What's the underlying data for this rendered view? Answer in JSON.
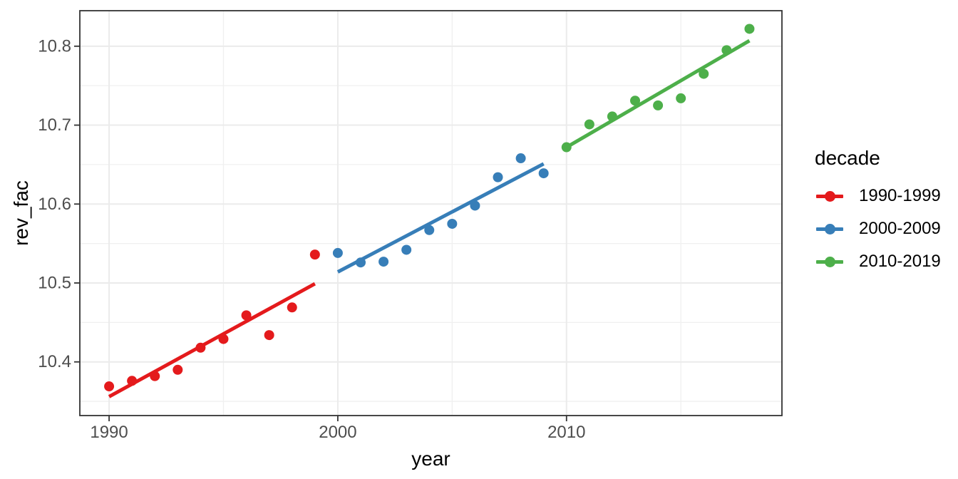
{
  "figure": {
    "background": "#ffffff",
    "panel_border_color": "#333333",
    "grid_major_color": "#ebebeb",
    "grid_minor_color": "#f0f0f0",
    "tick_color": "#333333",
    "tick_label_color": "#4d4d4d",
    "title_color": "#000000"
  },
  "chart_data": {
    "type": "scatter",
    "title": "",
    "xlabel": "year",
    "ylabel": "rev_fac",
    "legend_title": "decade",
    "legend_position": "right",
    "grid": true,
    "xlim": [
      1988.72,
      2019.42
    ],
    "ylim": [
      10.332,
      10.845
    ],
    "x_tick_values": [
      1990,
      2000,
      2010
    ],
    "x_tick_labels": [
      "1990",
      "2000",
      "2010"
    ],
    "x_minor_tick_values": [
      1995,
      2005,
      2015
    ],
    "y_tick_values": [
      10.4,
      10.5,
      10.6,
      10.7,
      10.8
    ],
    "y_tick_labels": [
      "10.4",
      "10.5",
      "10.6",
      "10.7",
      "10.8"
    ],
    "y_minor_tick_values": [
      10.35,
      10.45,
      10.55,
      10.65,
      10.75
    ],
    "series": [
      {
        "name": "1990-1999",
        "color": "#E41A1C",
        "x": [
          1990,
          1991,
          1992,
          1993,
          1994,
          1995,
          1996,
          1997,
          1998,
          1999
        ],
        "y": [
          10.369,
          10.376,
          10.382,
          10.39,
          10.418,
          10.429,
          10.459,
          10.434,
          10.469,
          10.536
        ],
        "trend": {
          "x1": 1990,
          "y1": 10.356,
          "x2": 1999,
          "y2": 10.499
        }
      },
      {
        "name": "2000-2009",
        "color": "#377EB8",
        "x": [
          2000,
          2001,
          2002,
          2003,
          2004,
          2005,
          2006,
          2007,
          2008,
          2009
        ],
        "y": [
          10.538,
          10.526,
          10.527,
          10.542,
          10.567,
          10.575,
          10.598,
          10.634,
          10.658,
          10.639
        ],
        "trend": {
          "x1": 2000,
          "y1": 10.514,
          "x2": 2009,
          "y2": 10.651
        }
      },
      {
        "name": "2010-2019",
        "color": "#4DAF4A",
        "x": [
          2010,
          2011,
          2012,
          2013,
          2014,
          2015,
          2016,
          2017,
          2018
        ],
        "y": [
          10.672,
          10.701,
          10.711,
          10.731,
          10.725,
          10.734,
          10.765,
          10.795,
          10.822
        ],
        "trend": {
          "x1": 2010,
          "y1": 10.672,
          "x2": 2018,
          "y2": 10.807
        }
      }
    ]
  }
}
